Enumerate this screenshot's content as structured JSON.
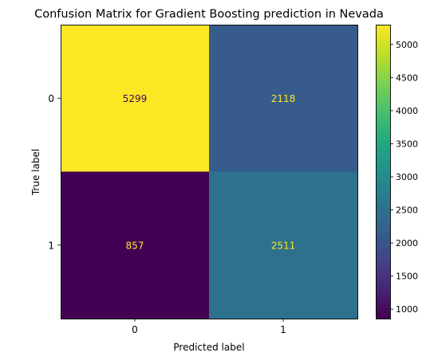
{
  "chart_data": {
    "type": "heatmap",
    "title": "Confusion Matrix for Gradient Boosting prediction in Nevada",
    "xlabel": "Predicted label",
    "ylabel": "True label",
    "x_categories": [
      "0",
      "1"
    ],
    "y_categories": [
      "0",
      "1"
    ],
    "values": [
      [
        5299,
        2118
      ],
      [
        857,
        2511
      ]
    ],
    "colormap": "viridis",
    "colorbar": {
      "range": [
        857,
        5299
      ],
      "ticks": [
        1000,
        1500,
        2000,
        2500,
        3000,
        3500,
        4000,
        4500,
        5000
      ]
    },
    "grid": false,
    "colors": {
      "cell_text_dark": "#440154",
      "cell_text_light": "#fde725"
    }
  }
}
